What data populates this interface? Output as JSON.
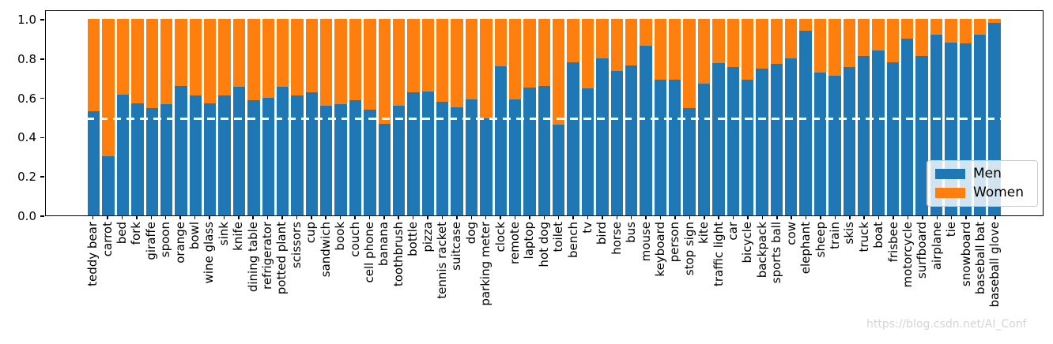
{
  "colors": {
    "men": "#1f77b4",
    "women": "#ff7f0e",
    "reference_line": "#ffffff",
    "axis": "#000000",
    "watermark_color": "#d5d5d5"
  },
  "y_axis": {
    "ticks": [
      "0.0",
      "0.2",
      "0.4",
      "0.6",
      "0.8",
      "1.0"
    ]
  },
  "legend": {
    "items": [
      {
        "label": "Men",
        "color": "#1f77b4"
      },
      {
        "label": "Women",
        "color": "#ff7f0e"
      }
    ]
  },
  "watermark": "https://blog.csdn.net/AI_Conf",
  "chart_data": {
    "type": "bar",
    "stacked": true,
    "normalized": true,
    "title": "",
    "xlabel": "",
    "ylabel": "",
    "ylim": [
      0,
      1
    ],
    "y_ticks": [
      0.0,
      0.2,
      0.4,
      0.6,
      0.8,
      1.0
    ],
    "reference_line_y": 0.5,
    "reference_line_style": "white dashed",
    "legend_position": "lower right",
    "grid": false,
    "categories": [
      "teddy bear",
      "carrot",
      "bed",
      "fork",
      "giraffe",
      "spoon",
      "orange",
      "bowl",
      "wine glass",
      "sink",
      "knife",
      "dining table",
      "refrigerator",
      "potted plant",
      "scissors",
      "cup",
      "sandwich",
      "book",
      "couch",
      "cell phone",
      "banana",
      "toothbrush",
      "bottle",
      "pizza",
      "tennis racket",
      "suitcase",
      "dog",
      "parking meter",
      "clock",
      "remote",
      "laptop",
      "hot dog",
      "toilet",
      "bench",
      "tv",
      "bird",
      "horse",
      "bus",
      "mouse",
      "keyboard",
      "person",
      "stop sign",
      "kite",
      "traffic light",
      "car",
      "bicycle",
      "backpack",
      "sports ball",
      "cow",
      "elephant",
      "sheep",
      "train",
      "skis",
      "truck",
      "boat",
      "frisbee",
      "motorcycle",
      "surfboard",
      "airplane",
      "tie",
      "snowboard",
      "baseball bat",
      "baseball glove"
    ],
    "series": [
      {
        "name": "Men",
        "color": "#1f77b4",
        "values": [
          0.53,
          0.3,
          0.615,
          0.57,
          0.545,
          0.565,
          0.66,
          0.61,
          0.57,
          0.61,
          0.655,
          0.585,
          0.6,
          0.655,
          0.61,
          0.625,
          0.56,
          0.565,
          0.585,
          0.54,
          0.465,
          0.56,
          0.625,
          0.63,
          0.58,
          0.55,
          0.59,
          0.495,
          0.76,
          0.59,
          0.65,
          0.66,
          0.46,
          0.78,
          0.645,
          0.8,
          0.735,
          0.765,
          0.865,
          0.69,
          0.69,
          0.545,
          0.67,
          0.775,
          0.755,
          0.69,
          0.745,
          0.77,
          0.8,
          0.94,
          0.725,
          0.71,
          0.755,
          0.81,
          0.84,
          0.78,
          0.9,
          0.81,
          0.92,
          0.88,
          0.875,
          0.92,
          0.98
        ]
      },
      {
        "name": "Women",
        "color": "#ff7f0e",
        "values": [
          0.47,
          0.7,
          0.385,
          0.43,
          0.455,
          0.435,
          0.34,
          0.39,
          0.43,
          0.39,
          0.345,
          0.415,
          0.4,
          0.345,
          0.39,
          0.375,
          0.44,
          0.435,
          0.415,
          0.46,
          0.535,
          0.44,
          0.375,
          0.37,
          0.42,
          0.45,
          0.41,
          0.505,
          0.24,
          0.41,
          0.35,
          0.34,
          0.54,
          0.22,
          0.355,
          0.2,
          0.265,
          0.235,
          0.135,
          0.31,
          0.31,
          0.455,
          0.33,
          0.225,
          0.245,
          0.31,
          0.255,
          0.23,
          0.2,
          0.06,
          0.275,
          0.29,
          0.245,
          0.19,
          0.16,
          0.22,
          0.1,
          0.19,
          0.08,
          0.12,
          0.125,
          0.08,
          0.02
        ]
      }
    ]
  }
}
